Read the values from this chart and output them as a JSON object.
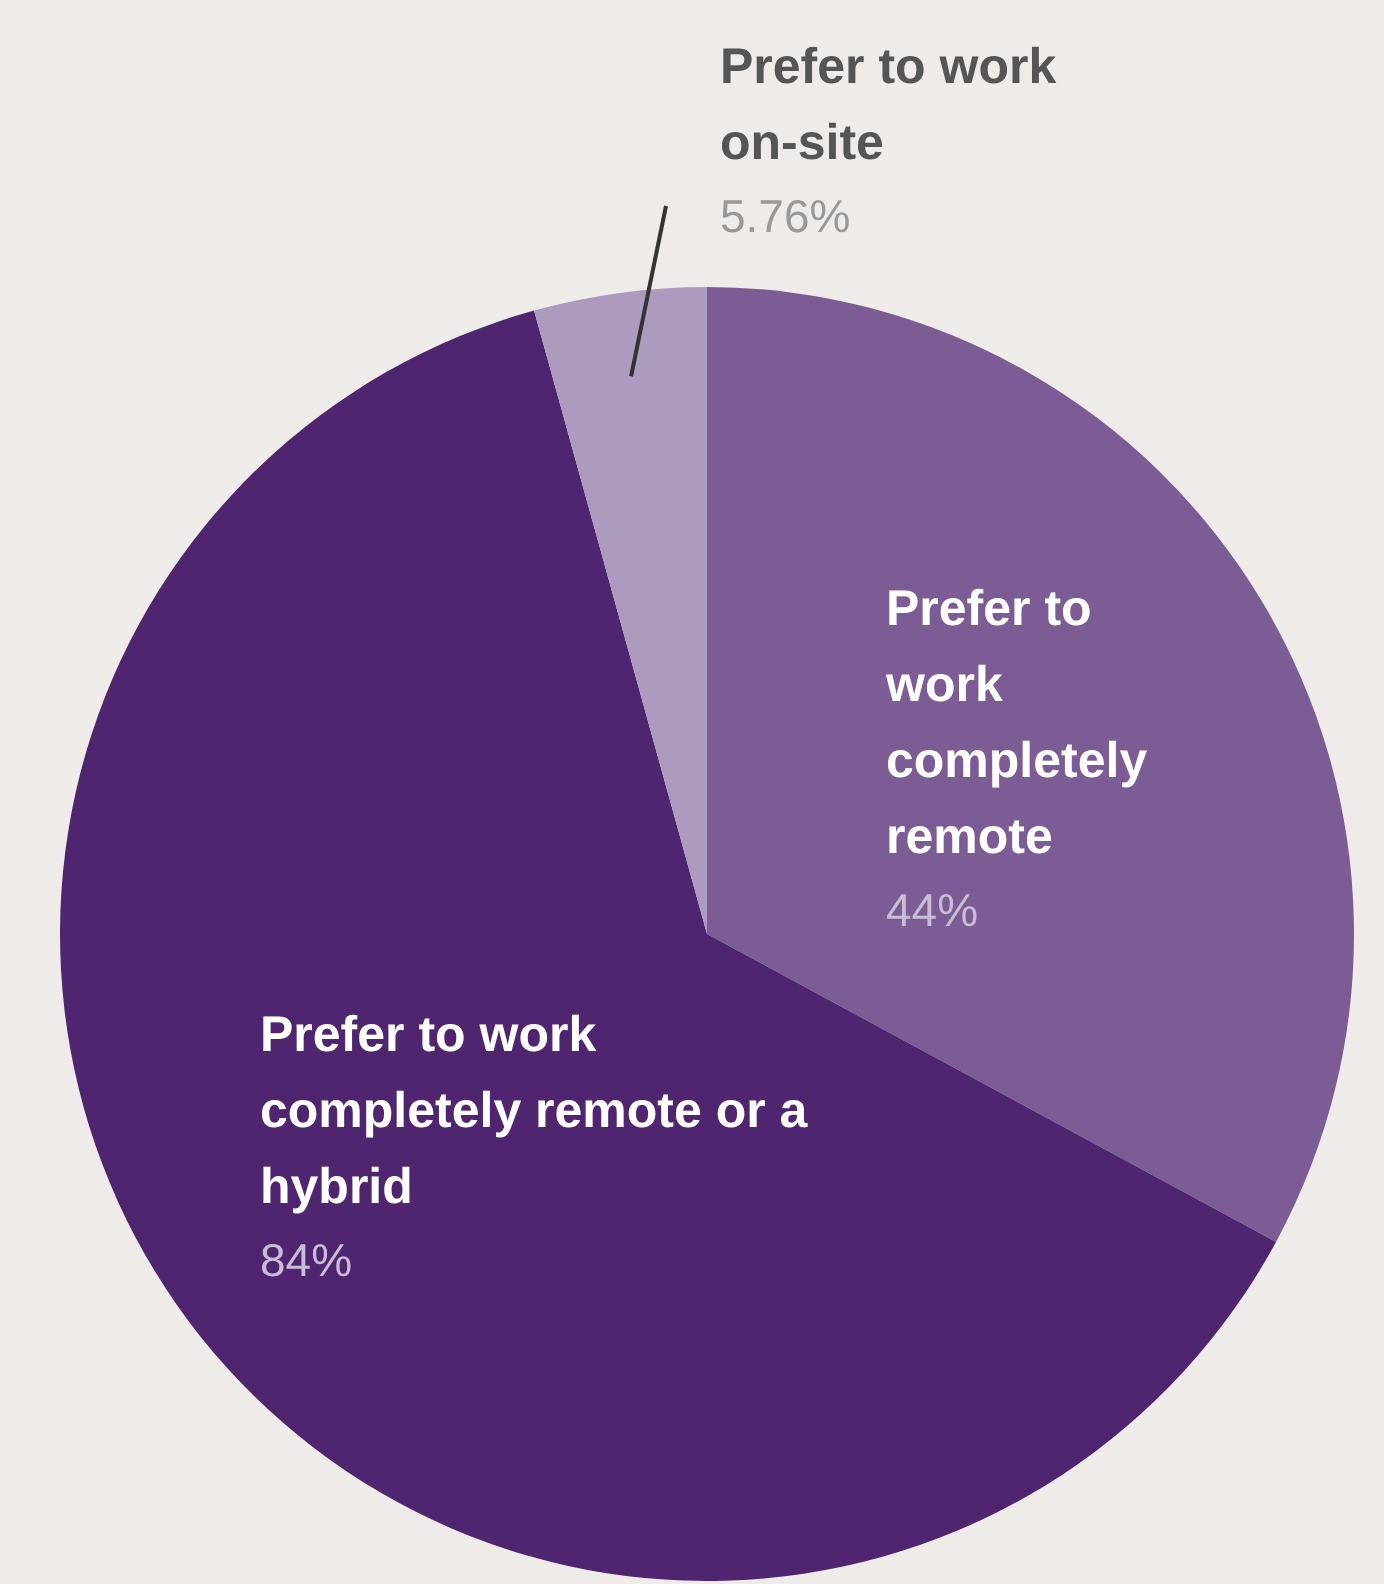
{
  "chart_data": {
    "type": "pie",
    "categories": [
      "Prefer to work completely remote",
      "Prefer to work completely remote or a hybrid",
      "Prefer to work on-site"
    ],
    "values": [
      44,
      84,
      5.76
    ],
    "colors": [
      "#7b5c94",
      "#4f2570",
      "#ad9bbf"
    ],
    "value_labels": [
      "44%",
      "84%",
      "5.76%"
    ],
    "legend": false
  }
}
